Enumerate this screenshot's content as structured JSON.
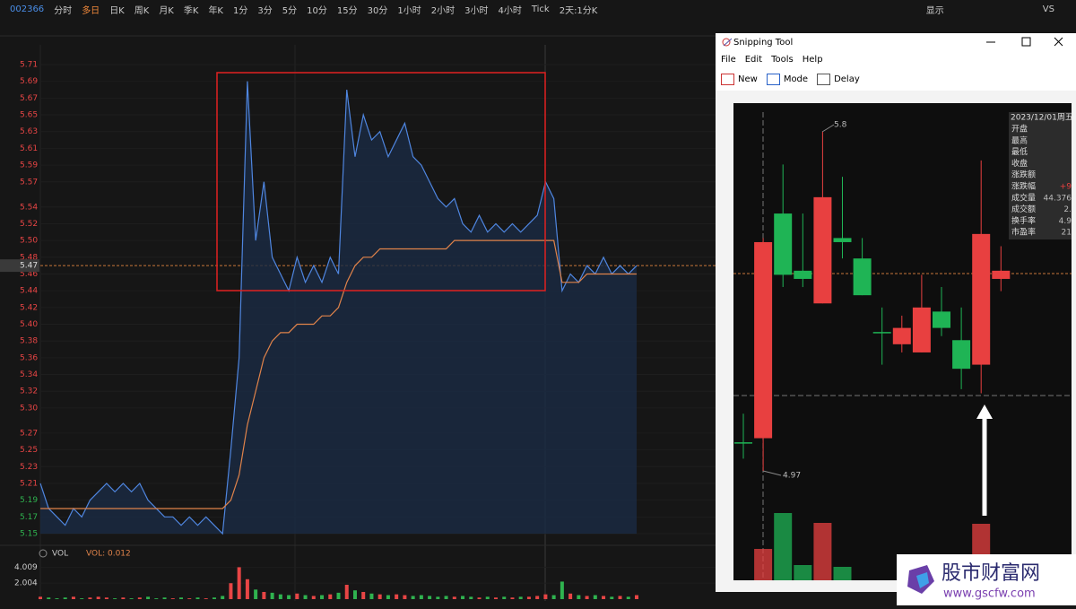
{
  "toolbar": {
    "code": "002366",
    "items": [
      "分时",
      "多日",
      "日K",
      "周K",
      "月K",
      "季K",
      "年K",
      "1分",
      "3分",
      "5分",
      "10分",
      "15分",
      "30分",
      "1小时",
      "2小时",
      "3小时",
      "4小时",
      "Tick",
      "2天:1分K"
    ],
    "active": 1,
    "right": [
      "显示",
      "VS"
    ]
  },
  "main_chart": {
    "type": "line",
    "ylim": [
      5.15,
      5.71
    ],
    "yticks": [
      5.71,
      5.69,
      5.67,
      5.65,
      5.63,
      5.61,
      5.59,
      5.57,
      5.54,
      5.52,
      {
        "value": 5.5,
        "label": "5.50"
      },
      5.48,
      5.46,
      5.44,
      5.42,
      {
        "value": 5.4,
        "label": "5.40"
      },
      5.38,
      5.36,
      5.34,
      5.32,
      {
        "value": 5.3,
        "label": "5.30"
      },
      5.27,
      5.25,
      5.23,
      5.21,
      5.19,
      5.17,
      5.15
    ],
    "up_color": "#e84545",
    "down_color": "#2fb34f",
    "last_price": 5.47,
    "series": [
      {
        "name": "price",
        "color": "#4f86e0",
        "values": [
          5.21,
          5.18,
          5.17,
          5.16,
          5.18,
          5.17,
          5.19,
          5.2,
          5.21,
          5.2,
          5.21,
          5.2,
          5.21,
          5.19,
          5.18,
          5.17,
          5.17,
          5.16,
          5.17,
          5.16,
          5.17,
          5.16,
          5.15,
          5.25,
          5.36,
          5.69,
          5.5,
          5.57,
          5.48,
          5.46,
          5.44,
          5.48,
          5.45,
          5.47,
          5.45,
          5.48,
          5.46,
          5.68,
          5.6,
          5.65,
          5.62,
          5.63,
          5.6,
          5.62,
          5.64,
          5.6,
          5.59,
          5.57,
          5.55,
          5.54,
          5.55,
          5.52,
          5.51,
          5.53,
          5.51,
          5.52,
          5.51,
          5.52,
          5.51,
          5.52,
          5.53,
          5.57,
          5.55,
          5.44,
          5.46,
          5.45,
          5.47,
          5.46,
          5.48,
          5.46,
          5.47,
          5.46,
          5.47
        ]
      },
      {
        "name": "average",
        "color": "#e0834a",
        "values": [
          5.18,
          5.18,
          5.18,
          5.18,
          5.18,
          5.18,
          5.18,
          5.18,
          5.18,
          5.18,
          5.18,
          5.18,
          5.18,
          5.18,
          5.18,
          5.18,
          5.18,
          5.18,
          5.18,
          5.18,
          5.18,
          5.18,
          5.18,
          5.19,
          5.22,
          5.28,
          5.32,
          5.36,
          5.38,
          5.39,
          5.39,
          5.4,
          5.4,
          5.4,
          5.41,
          5.41,
          5.42,
          5.45,
          5.47,
          5.48,
          5.48,
          5.49,
          5.49,
          5.49,
          5.49,
          5.49,
          5.49,
          5.49,
          5.49,
          5.49,
          5.5,
          5.5,
          5.5,
          5.5,
          5.5,
          5.5,
          5.5,
          5.5,
          5.5,
          5.5,
          5.5,
          5.5,
          5.5,
          5.45,
          5.45,
          5.45,
          5.46,
          5.46,
          5.46,
          5.46,
          5.46,
          5.46,
          5.46
        ]
      }
    ]
  },
  "volume_chart": {
    "type": "bar",
    "title": "VOL",
    "indicator": "VOL: 0.012",
    "ylim": [
      0,
      4.5
    ],
    "yticks": [
      4.009,
      2.004
    ],
    "values": [
      0.3,
      0.2,
      0.1,
      0.2,
      0.3,
      0.1,
      0.2,
      0.3,
      0.2,
      0.1,
      0.2,
      0.1,
      0.2,
      0.3,
      0.1,
      0.2,
      0.1,
      0.2,
      0.1,
      0.2,
      0.1,
      0.2,
      0.4,
      2.0,
      4.0,
      2.5,
      1.2,
      0.9,
      0.8,
      0.6,
      0.5,
      0.7,
      0.5,
      0.4,
      0.5,
      0.6,
      0.8,
      1.8,
      1.1,
      0.9,
      0.7,
      0.6,
      0.5,
      0.6,
      0.5,
      0.4,
      0.5,
      0.4,
      0.3,
      0.4,
      0.3,
      0.4,
      0.3,
      0.2,
      0.3,
      0.2,
      0.3,
      0.2,
      0.3,
      0.3,
      0.4,
      0.6,
      0.5,
      2.2,
      0.7,
      0.5,
      0.4,
      0.5,
      0.4,
      0.3,
      0.4,
      0.3,
      0.5
    ]
  },
  "snipping_tool": {
    "title": "Snipping Tool",
    "menu": [
      "File",
      "Edit",
      "Tools",
      "Help"
    ],
    "buttons": [
      "New",
      "Mode",
      "Delay"
    ],
    "image": {
      "type": "candlestick",
      "high_label": 5.8,
      "low_label": 4.97,
      "date": "2023/12/01周五",
      "rows": [
        {
          "label": "开盘"
        },
        {
          "label": "最高"
        },
        {
          "label": "最低"
        },
        {
          "label": "收盘"
        },
        {
          "label": "涨跌额"
        },
        {
          "label": "涨跌幅",
          "value": "+9"
        },
        {
          "label": "成交量",
          "value": "44.376"
        },
        {
          "label": "成交额",
          "value": "2."
        },
        {
          "label": "换手率",
          "value": "4.9"
        },
        {
          "label": "市盈率",
          "value": "21"
        }
      ],
      "candles": [
        {
          "open": 5.04,
          "high": 5.11,
          "low": 5.0,
          "close": 5.04
        },
        {
          "open": 5.05,
          "high": 5.54,
          "low": 4.97,
          "close": 5.53
        },
        {
          "open": 5.6,
          "high": 5.72,
          "low": 5.42,
          "close": 5.45
        },
        {
          "open": 5.46,
          "high": 5.6,
          "low": 5.42,
          "close": 5.44
        },
        {
          "open": 5.38,
          "high": 5.8,
          "low": 5.38,
          "close": 5.64
        },
        {
          "open": 5.54,
          "high": 5.69,
          "low": 5.49,
          "close": 5.53
        },
        {
          "open": 5.49,
          "high": 5.54,
          "low": 5.4,
          "close": 5.4
        },
        {
          "open": 5.31,
          "high": 5.37,
          "low": 5.23,
          "close": 5.31
        },
        {
          "open": 5.28,
          "high": 5.35,
          "low": 5.26,
          "close": 5.32
        },
        {
          "open": 5.26,
          "high": 5.45,
          "low": 5.26,
          "close": 5.37
        },
        {
          "open": 5.36,
          "high": 5.42,
          "low": 5.3,
          "close": 5.32
        },
        {
          "open": 5.29,
          "high": 5.37,
          "low": 5.17,
          "close": 5.22
        },
        {
          "open": 5.23,
          "high": 5.73,
          "low": 5.16,
          "close": 5.55
        },
        {
          "open": 5.44,
          "high": 5.52,
          "low": 5.41,
          "close": 5.46
        }
      ],
      "vlim": [
        0,
        100
      ],
      "volumes": [
        0,
        35,
        75,
        17,
        64,
        15,
        0,
        0,
        0,
        0,
        0,
        0,
        63,
        0
      ]
    }
  },
  "watermark": {
    "name": "股市财富网",
    "url": "www.gscfw.com"
  }
}
